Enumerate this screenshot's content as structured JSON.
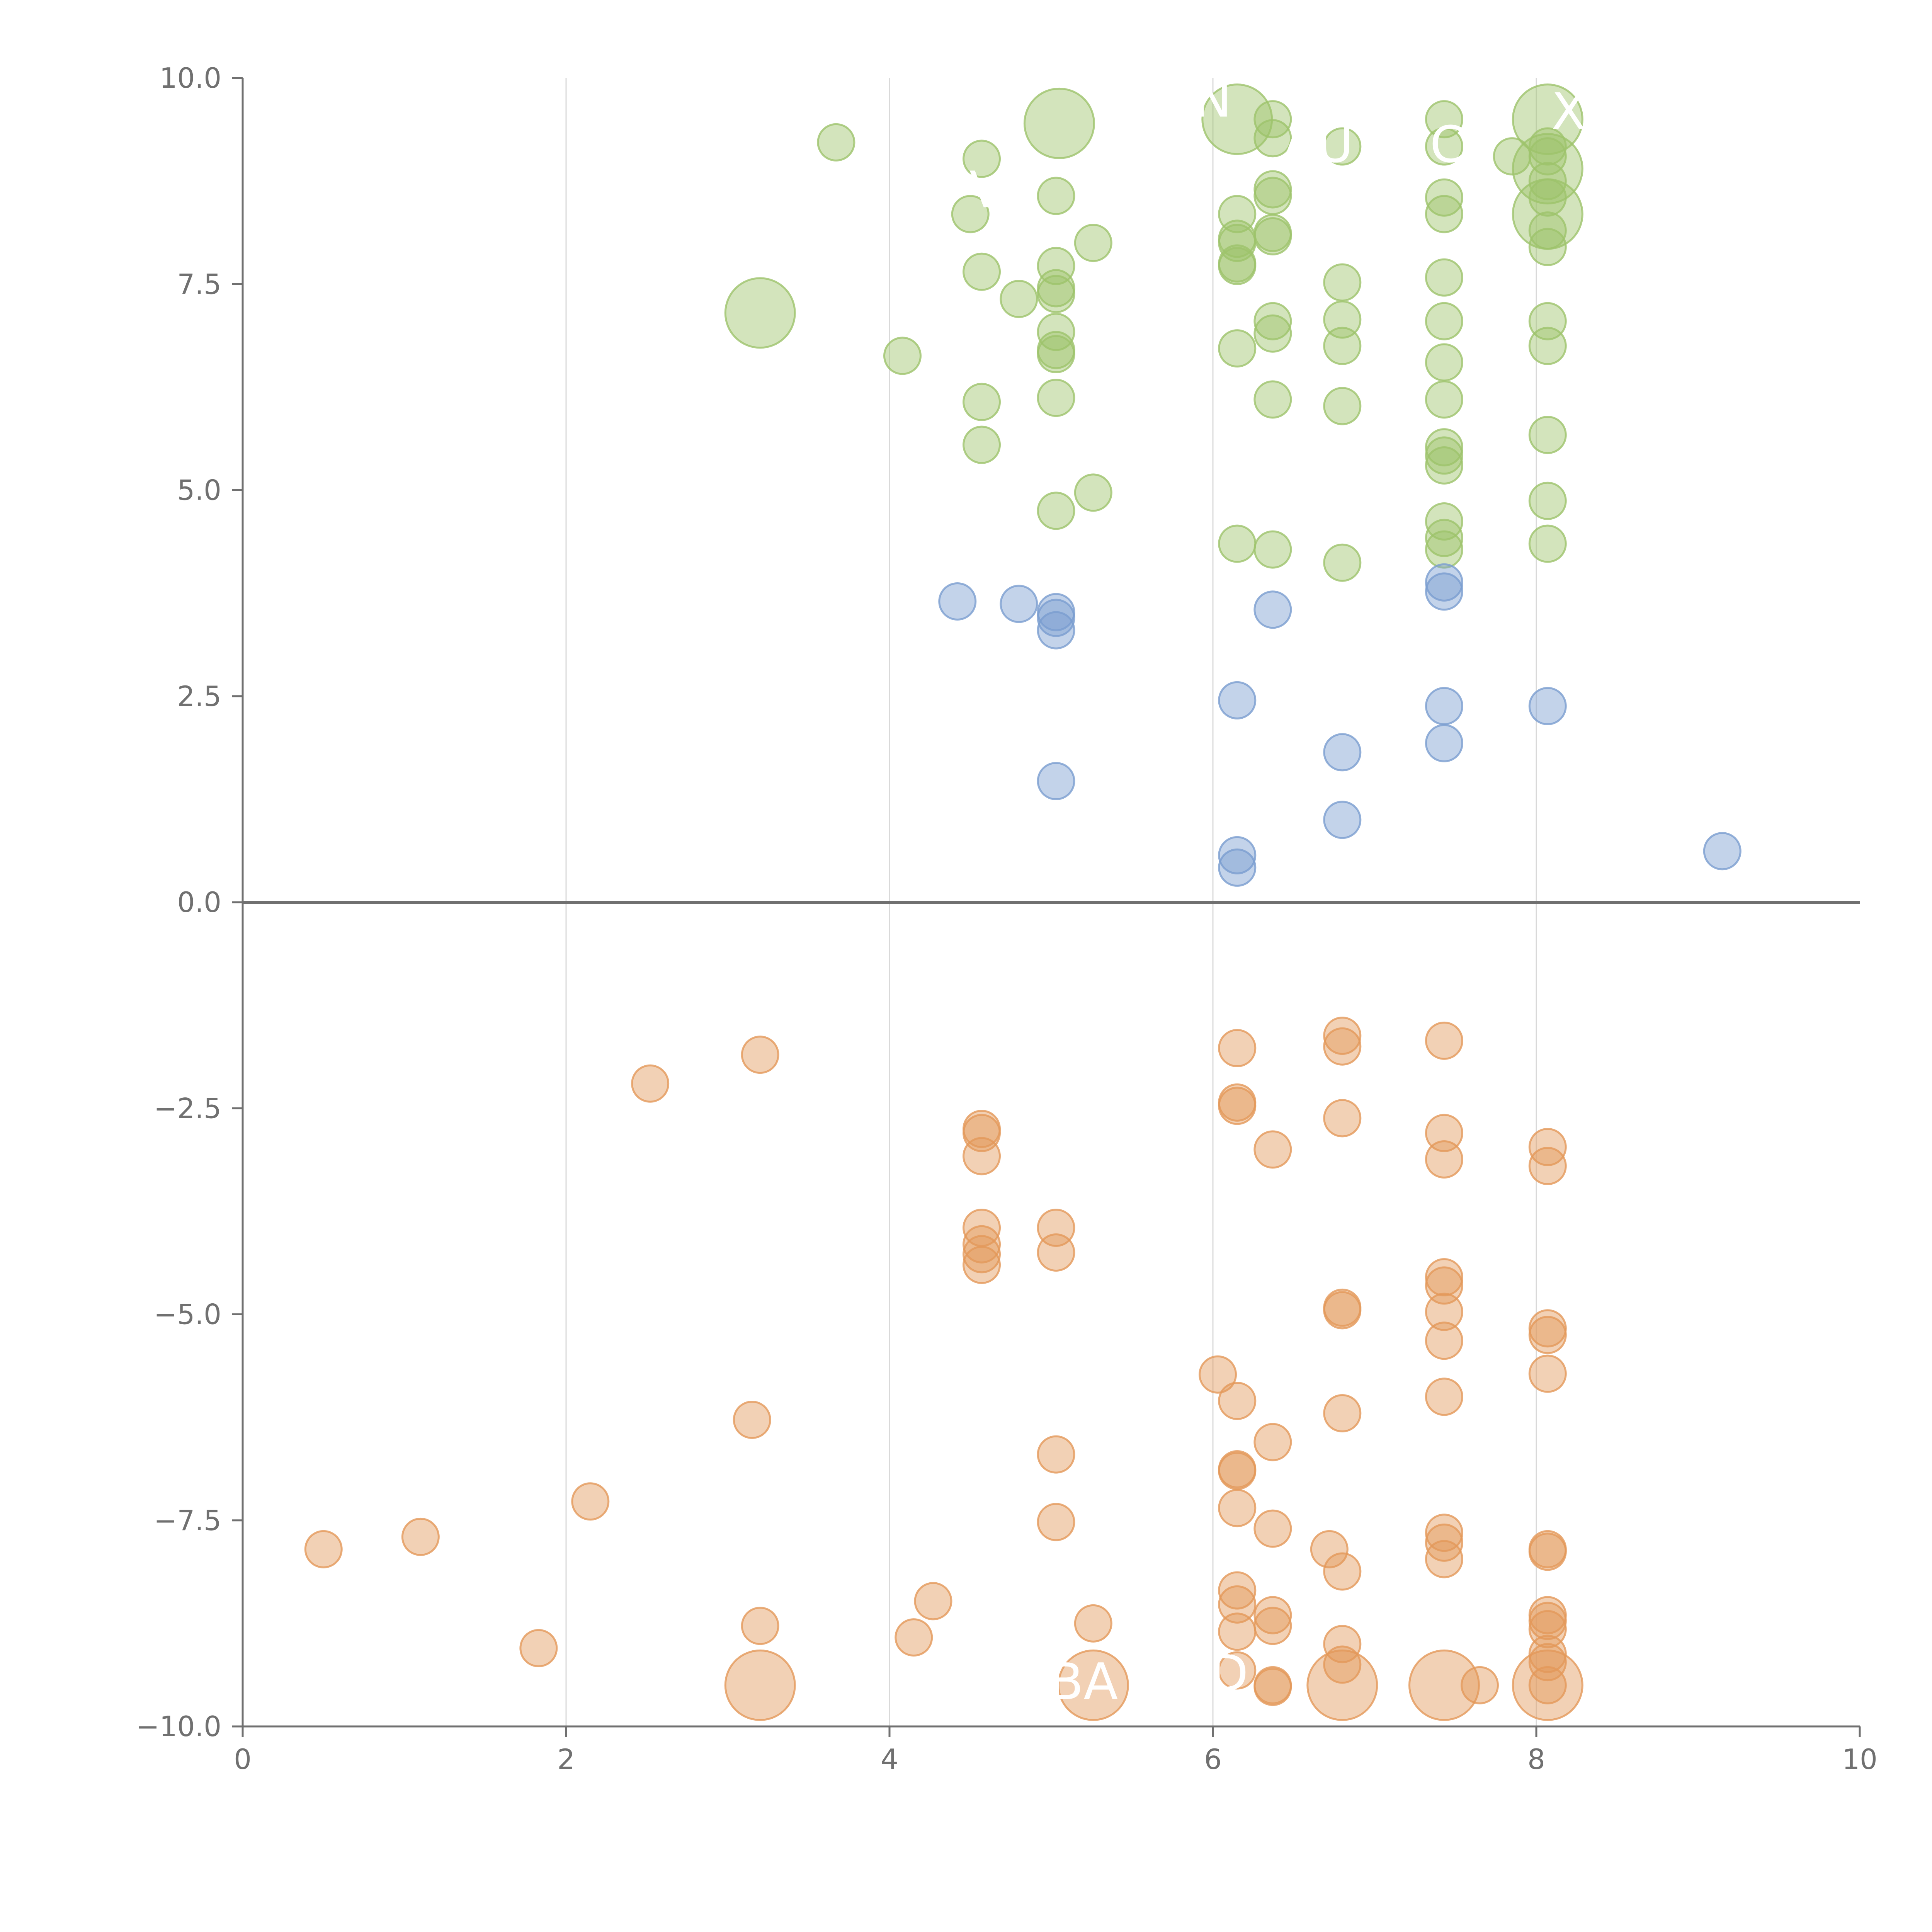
{
  "chart_data": {
    "type": "scatter",
    "title": "",
    "xlabel": "",
    "ylabel": "",
    "xlim": [
      0,
      10
    ],
    "ylim": [
      -10,
      10
    ],
    "grid": {
      "x": true,
      "y": false
    },
    "zero_line": true,
    "x_ticks": [
      0,
      2,
      4,
      6,
      8,
      10
    ],
    "y_ticks": [
      -10.0,
      -7.5,
      -5.0,
      -2.5,
      0.0,
      2.5,
      5.0,
      7.5,
      10.0
    ],
    "x_tick_labels": [
      "0",
      "2",
      "4",
      "6",
      "8",
      "10"
    ],
    "y_tick_labels": [
      "−10.0",
      "−7.5",
      "−5.0",
      "−2.5",
      "0.0",
      "2.5",
      "5.0",
      "7.5",
      "10.0"
    ],
    "colors": {
      "green": "#9dc36b",
      "blue": "#7a9ed0",
      "orange": "#e3995a",
      "axis": "#707070",
      "grid": "#d9d9d9",
      "label": "#ffffff"
    },
    "series": [
      {
        "color_key": "green",
        "points": [
          [
            5.05,
            9.45,
            3
          ],
          [
            6.15,
            9.5,
            3
          ],
          [
            8.07,
            9.5,
            3
          ],
          [
            8.07,
            8.9,
            3
          ],
          [
            8.07,
            8.35,
            3
          ],
          [
            3.2,
            7.15,
            3
          ],
          [
            3.67,
            9.22,
            1
          ],
          [
            4.57,
            9.02,
            1
          ],
          [
            4.5,
            8.35,
            1
          ],
          [
            5.03,
            8.57,
            1
          ],
          [
            4.57,
            7.65,
            1
          ],
          [
            4.8,
            7.32,
            1
          ],
          [
            5.03,
            7.72,
            1
          ],
          [
            5.03,
            7.45,
            1
          ],
          [
            5.03,
            7.38,
            1
          ],
          [
            5.26,
            8.0,
            1
          ],
          [
            4.08,
            6.63,
            1
          ],
          [
            4.57,
            6.07,
            1
          ],
          [
            4.57,
            5.55,
            1
          ],
          [
            5.03,
            6.92,
            1
          ],
          [
            5.03,
            6.7,
            1
          ],
          [
            5.03,
            6.65,
            1
          ],
          [
            5.03,
            6.12,
            1
          ],
          [
            5.26,
            4.97,
            1
          ],
          [
            5.03,
            4.75,
            1
          ],
          [
            6.37,
            9.5,
            1
          ],
          [
            6.37,
            9.27,
            1
          ],
          [
            6.37,
            8.65,
            1
          ],
          [
            6.37,
            8.57,
            1
          ],
          [
            6.37,
            8.12,
            1
          ],
          [
            6.37,
            8.08,
            1
          ],
          [
            6.37,
            7.05,
            1
          ],
          [
            6.37,
            6.9,
            1
          ],
          [
            6.37,
            6.1,
            1
          ],
          [
            6.37,
            4.28,
            1
          ],
          [
            6.15,
            8.35,
            1
          ],
          [
            6.15,
            8.05,
            1
          ],
          [
            6.15,
            8.0,
            1
          ],
          [
            6.15,
            7.75,
            1
          ],
          [
            6.15,
            7.72,
            1
          ],
          [
            6.15,
            6.72,
            1
          ],
          [
            6.15,
            4.35,
            1
          ],
          [
            6.8,
            9.17,
            1
          ],
          [
            6.8,
            7.52,
            1
          ],
          [
            6.8,
            7.07,
            1
          ],
          [
            6.8,
            6.75,
            1
          ],
          [
            6.8,
            6.02,
            1
          ],
          [
            6.8,
            4.12,
            1
          ],
          [
            7.43,
            9.5,
            1
          ],
          [
            7.43,
            9.17,
            1
          ],
          [
            7.43,
            8.55,
            1
          ],
          [
            7.43,
            8.35,
            1
          ],
          [
            7.43,
            7.58,
            1
          ],
          [
            7.43,
            7.05,
            1
          ],
          [
            7.43,
            6.55,
            1
          ],
          [
            7.43,
            6.1,
            1
          ],
          [
            7.43,
            5.52,
            1
          ],
          [
            7.43,
            5.42,
            1
          ],
          [
            7.43,
            5.3,
            1
          ],
          [
            7.43,
            4.62,
            1
          ],
          [
            7.43,
            4.42,
            1
          ],
          [
            7.43,
            4.28,
            1
          ],
          [
            7.85,
            9.05,
            1
          ],
          [
            8.07,
            9.17,
            1
          ],
          [
            8.07,
            9.05,
            1
          ],
          [
            8.07,
            8.75,
            1
          ],
          [
            8.07,
            8.55,
            1
          ],
          [
            8.07,
            8.15,
            1
          ],
          [
            8.07,
            7.95,
            1
          ],
          [
            8.07,
            7.05,
            1
          ],
          [
            8.07,
            6.75,
            1
          ],
          [
            8.07,
            5.67,
            1
          ],
          [
            8.07,
            4.87,
            1
          ],
          [
            8.07,
            4.35,
            1
          ]
        ]
      },
      {
        "color_key": "blue",
        "points": [
          [
            4.42,
            3.65,
            1
          ],
          [
            4.8,
            3.62,
            1
          ],
          [
            5.03,
            3.52,
            1
          ],
          [
            5.03,
            3.45,
            1
          ],
          [
            5.03,
            3.3,
            1
          ],
          [
            5.03,
            1.47,
            1
          ],
          [
            6.37,
            3.55,
            1
          ],
          [
            6.15,
            2.45,
            1
          ],
          [
            6.15,
            0.57,
            1
          ],
          [
            6.15,
            0.42,
            1
          ],
          [
            6.8,
            1.82,
            1
          ],
          [
            6.8,
            1.0,
            1
          ],
          [
            7.43,
            3.88,
            1
          ],
          [
            7.43,
            3.77,
            1
          ],
          [
            7.43,
            2.38,
            1
          ],
          [
            7.43,
            1.93,
            1
          ],
          [
            8.07,
            2.38,
            1
          ],
          [
            9.15,
            0.62,
            1
          ]
        ]
      },
      {
        "color_key": "orange",
        "points": [
          [
            3.2,
            -9.5,
            3
          ],
          [
            5.26,
            -9.5,
            3
          ],
          [
            6.8,
            -9.5,
            3
          ],
          [
            7.43,
            -9.5,
            3
          ],
          [
            8.07,
            -9.5,
            3
          ],
          [
            0.5,
            -7.85,
            1
          ],
          [
            1.1,
            -7.7,
            1
          ],
          [
            1.83,
            -9.05,
            1
          ],
          [
            2.15,
            -7.27,
            1
          ],
          [
            2.52,
            -2.2,
            1
          ],
          [
            3.2,
            -1.85,
            1
          ],
          [
            3.15,
            -6.28,
            1
          ],
          [
            3.2,
            -8.78,
            1
          ],
          [
            4.15,
            -8.92,
            1
          ],
          [
            4.27,
            -8.48,
            1
          ],
          [
            4.57,
            -2.75,
            1
          ],
          [
            4.57,
            -2.8,
            1
          ],
          [
            4.57,
            -3.08,
            1
          ],
          [
            4.57,
            -3.95,
            1
          ],
          [
            4.57,
            -4.15,
            1
          ],
          [
            4.57,
            -4.27,
            1
          ],
          [
            4.57,
            -4.4,
            1
          ],
          [
            5.03,
            -3.95,
            1
          ],
          [
            5.03,
            -4.25,
            1
          ],
          [
            5.03,
            -6.7,
            1
          ],
          [
            5.03,
            -7.52,
            1
          ],
          [
            5.26,
            -8.75,
            1
          ],
          [
            6.03,
            -5.73,
            1
          ],
          [
            6.15,
            -1.77,
            1
          ],
          [
            6.15,
            -2.43,
            1
          ],
          [
            6.15,
            -2.47,
            1
          ],
          [
            6.15,
            -6.05,
            1
          ],
          [
            6.15,
            -6.88,
            1
          ],
          [
            6.15,
            -6.9,
            1
          ],
          [
            6.15,
            -7.35,
            1
          ],
          [
            6.15,
            -8.35,
            1
          ],
          [
            6.15,
            -8.52,
            1
          ],
          [
            6.15,
            -8.85,
            1
          ],
          [
            6.15,
            -9.32,
            1
          ],
          [
            6.37,
            -3.0,
            1
          ],
          [
            6.37,
            -6.55,
            1
          ],
          [
            6.37,
            -7.6,
            1
          ],
          [
            6.37,
            -8.65,
            1
          ],
          [
            6.37,
            -8.78,
            1
          ],
          [
            6.37,
            -9.5,
            1
          ],
          [
            6.37,
            -9.52,
            1
          ],
          [
            6.72,
            -7.85,
            1
          ],
          [
            6.8,
            -1.62,
            1
          ],
          [
            6.8,
            -1.75,
            1
          ],
          [
            6.8,
            -2.62,
            1
          ],
          [
            6.8,
            -4.92,
            1
          ],
          [
            6.8,
            -4.95,
            1
          ],
          [
            6.8,
            -6.2,
            1
          ],
          [
            6.8,
            -8.12,
            1
          ],
          [
            6.8,
            -9.0,
            1
          ],
          [
            6.8,
            -9.25,
            1
          ],
          [
            7.43,
            -1.68,
            1
          ],
          [
            7.43,
            -2.8,
            1
          ],
          [
            7.43,
            -3.12,
            1
          ],
          [
            7.43,
            -4.55,
            1
          ],
          [
            7.43,
            -4.65,
            1
          ],
          [
            7.43,
            -4.97,
            1
          ],
          [
            7.43,
            -5.32,
            1
          ],
          [
            7.43,
            -6.0,
            1
          ],
          [
            7.43,
            -7.65,
            1
          ],
          [
            7.43,
            -7.77,
            1
          ],
          [
            7.43,
            -7.97,
            1
          ],
          [
            7.65,
            -9.5,
            1
          ],
          [
            8.07,
            -2.97,
            1
          ],
          [
            8.07,
            -3.2,
            1
          ],
          [
            8.07,
            -5.17,
            1
          ],
          [
            8.07,
            -5.25,
            1
          ],
          [
            8.07,
            -5.72,
            1
          ],
          [
            8.07,
            -7.85,
            1
          ],
          [
            8.07,
            -7.88,
            1
          ],
          [
            8.07,
            -8.65,
            1
          ],
          [
            8.07,
            -8.72,
            1
          ],
          [
            8.07,
            -8.82,
            1
          ],
          [
            8.07,
            -9.12,
            1
          ],
          [
            8.07,
            -9.22,
            1
          ],
          [
            8.07,
            -9.5,
            1
          ]
        ]
      }
    ],
    "annotations": [
      {
        "text": "N",
        "x": 6.0,
        "y": 9.7
      },
      {
        "text": "X",
        "x": 8.2,
        "y": 9.55
      },
      {
        "text": "AU",
        "x": 6.65,
        "y": 9.15
      },
      {
        "text": "C",
        "x": 7.45,
        "y": 9.15
      },
      {
        "text": "V",
        "x": 4.6,
        "y": 8.6
      },
      {
        "text": "BA",
        "x": 5.2,
        "y": -9.5
      },
      {
        "text": "D",
        "x": 6.1,
        "y": -9.4
      }
    ]
  }
}
